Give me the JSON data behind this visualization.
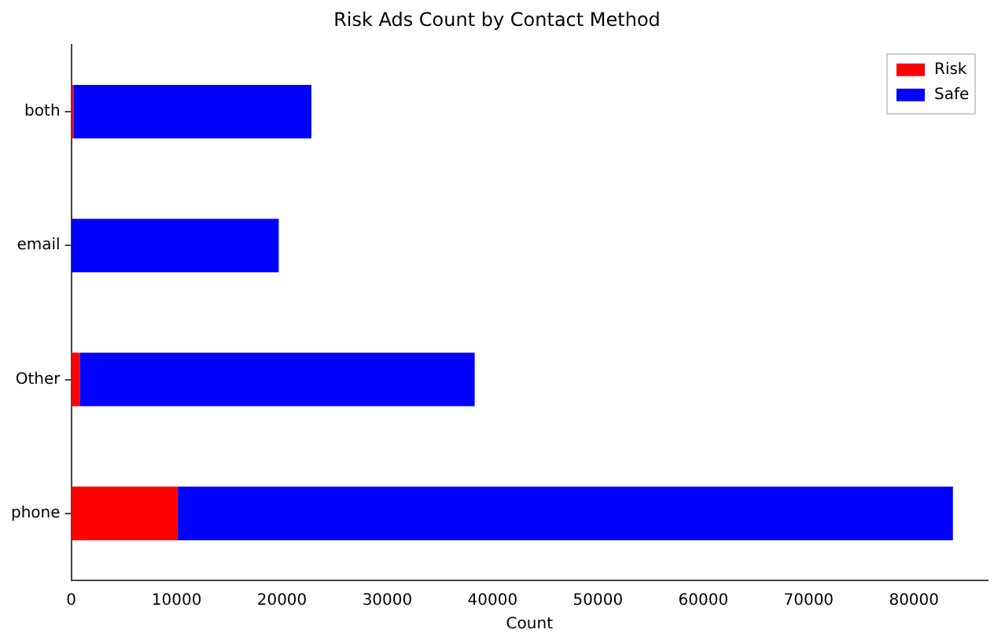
{
  "chart_data": {
    "type": "bar",
    "orientation": "horizontal",
    "stacked": true,
    "title": "Risk Ads Count by Contact Method",
    "xlabel": "Count",
    "categories": [
      "both",
      "email",
      "Other",
      "phone"
    ],
    "series": [
      {
        "name": "Risk",
        "color": "#ff0000",
        "values": [
          200,
          0,
          800,
          10100
        ]
      },
      {
        "name": "Safe",
        "color": "#0000ff",
        "values": [
          22600,
          19700,
          37500,
          73600
        ]
      }
    ],
    "xlim": [
      0,
      87000
    ],
    "xticks": [
      0,
      10000,
      20000,
      30000,
      40000,
      50000,
      60000,
      70000,
      80000
    ],
    "grid": false,
    "legend": "top right"
  }
}
